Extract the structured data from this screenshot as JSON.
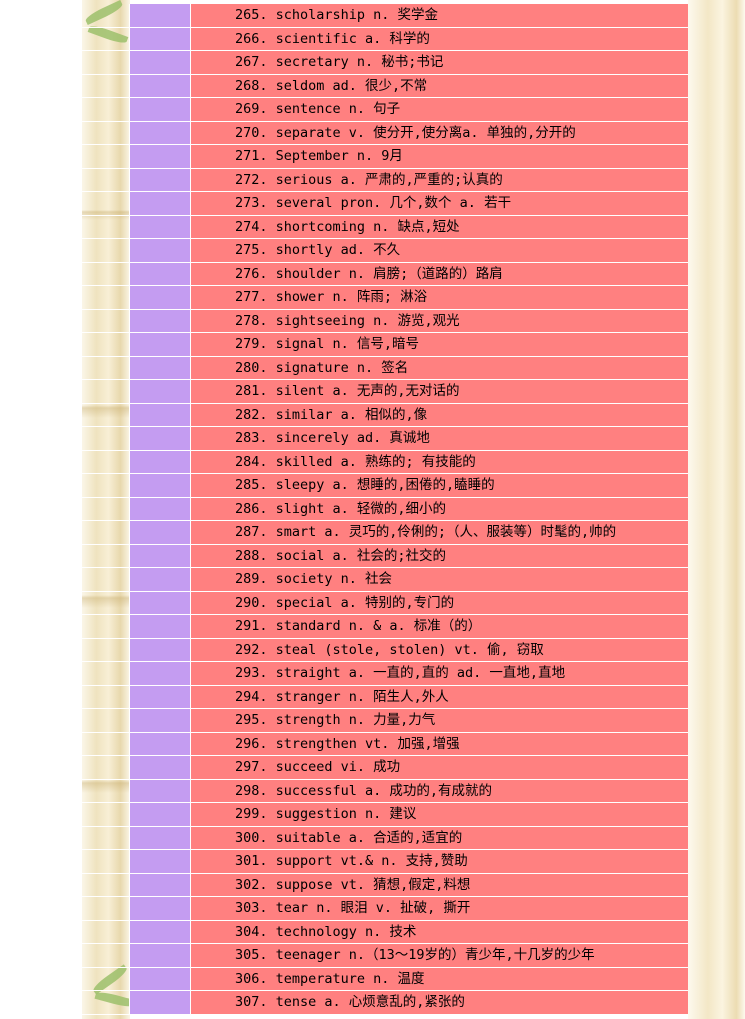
{
  "vocab": {
    "entries": [
      "265. scholarship n. 奖学金",
      "266. scientific a. 科学的",
      "267. secretary n. 秘书;书记",
      "268. seldom ad. 很少,不常",
      "269. sentence n. 句子",
      "270. separate v. 使分开,使分离a. 单独的,分开的",
      "271. September n. 9月",
      "272. serious a. 严肃的,严重的;认真的",
      "273. several pron. 几个,数个 a. 若干",
      "274. shortcoming n. 缺点,短处",
      "275. shortly ad. 不久",
      "276. shoulder n. 肩膀;（道路的）路肩",
      "277. shower n. 阵雨; 淋浴",
      "278. sightseeing n. 游览,观光",
      "279. signal n. 信号,暗号",
      "280. signature n. 签名",
      "281. silent a. 无声的,无对话的",
      "282. similar a. 相似的,像",
      "283. sincerely ad. 真诚地",
      "284. skilled a. 熟练的; 有技能的",
      "285. sleepy a. 想睡的,困倦的,瞌睡的",
      "286. slight a. 轻微的,细小的",
      "287. smart a. 灵巧的,伶俐的;（人、服装等）时髦的,帅的",
      "288. social a. 社会的;社交的",
      "289. society n. 社会",
      "290. special a. 特别的,专门的",
      "291. standard n. & a. 标准（的）",
      "292. steal (stole, stolen) vt. 偷, 窃取",
      "293. straight a. 一直的,直的 ad. 一直地,直地",
      "294. stranger n. 陌生人,外人",
      "295. strength n. 力量,力气",
      "296. strengthen vt. 加强,增强",
      "297. succeed vi. 成功",
      "298. successful a. 成功的,有成就的",
      "299. suggestion n. 建议",
      "300. suitable a. 合适的,适宜的",
      "301. support vt.& n. 支持,赞助",
      "302. suppose vt. 猜想,假定,料想",
      "303. tear n. 眼泪 v. 扯破, 撕开",
      "304. technology n. 技术",
      "305. teenager n.（13～19岁的）青少年,十几岁的少年",
      "306. temperature n. 温度",
      "307. tense a. 心烦意乱的,紧张的"
    ]
  },
  "colors": {
    "word_cell": "#ff8080",
    "index_cell": "#c49cf1"
  }
}
